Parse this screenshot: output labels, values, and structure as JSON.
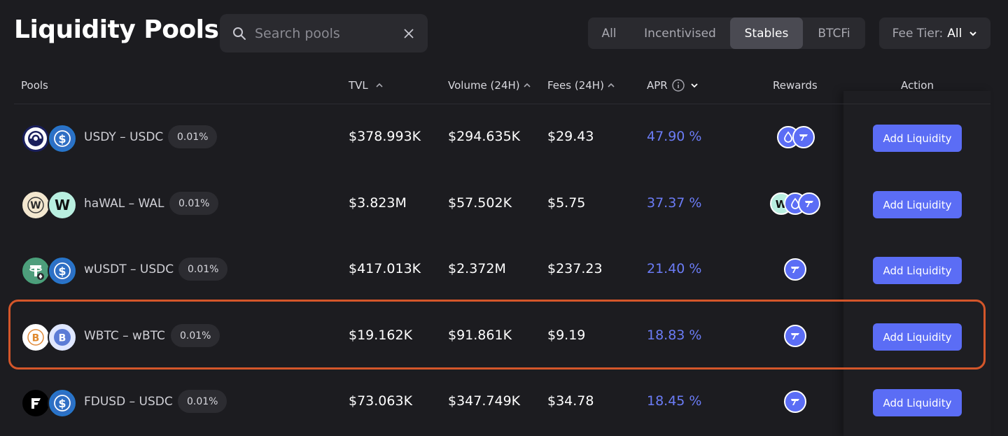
{
  "header": {
    "title": "Liquidity Pools",
    "search_placeholder": "Search pools",
    "filters": [
      "All",
      "Incentivised",
      "Stables",
      "BTCFi"
    ],
    "active_filter": "Stables",
    "fee_tier_label": "Fee Tier:",
    "fee_tier_value": "All"
  },
  "columns": {
    "pools": "Pools",
    "tvl": "TVL",
    "volume": "Volume (24H)",
    "fees": "Fees (24H)",
    "apr": "APR",
    "rewards": "Rewards",
    "action": "Action"
  },
  "rows": [
    {
      "pair": "USDY – USDC",
      "fee": "0.01%",
      "tvl": "$378.993K",
      "volume": "$294.635K",
      "fees": "$29.43",
      "apr": "47.90 %",
      "action": "Add Liquidity",
      "token_a": "usdy-icon",
      "token_b": "usdc-icon",
      "rewards": [
        "sui-icon",
        "protocol-icon"
      ]
    },
    {
      "pair": "haWAL – WAL",
      "fee": "0.01%",
      "tvl": "$3.823M",
      "volume": "$57.502K",
      "fees": "$5.75",
      "apr": "37.37 %",
      "action": "Add Liquidity",
      "token_a": "hawal-icon",
      "token_b": "wal-icon",
      "rewards": [
        "wal-icon",
        "sui-icon",
        "protocol-icon"
      ]
    },
    {
      "pair": "wUSDT – USDC",
      "fee": "0.01%",
      "tvl": "$417.013K",
      "volume": "$2.372M",
      "fees": "$237.23",
      "apr": "21.40 %",
      "action": "Add Liquidity",
      "token_a": "wusdt-icon",
      "token_b": "usdc-icon",
      "rewards": [
        "protocol-icon"
      ]
    },
    {
      "pair": "WBTC – wBTC",
      "fee": "0.01%",
      "tvl": "$19.162K",
      "volume": "$91.861K",
      "fees": "$9.19",
      "apr": "18.83 %",
      "action": "Add Liquidity",
      "token_a": "wbtc-icon",
      "token_b": "btc-blue-icon",
      "rewards": [
        "protocol-icon"
      ]
    },
    {
      "pair": "FDUSD – USDC",
      "fee": "0.01%",
      "tvl": "$73.063K",
      "volume": "$347.749K",
      "fees": "$34.78",
      "apr": "18.45 %",
      "action": "Add Liquidity",
      "token_a": "fdusd-icon",
      "token_b": "usdc-icon",
      "rewards": [
        "protocol-icon"
      ]
    }
  ],
  "colors": {
    "accent": "#5b6df5",
    "apr": "#6b7cf6",
    "highlight": "#d4562a",
    "background": "#1c1c20"
  }
}
